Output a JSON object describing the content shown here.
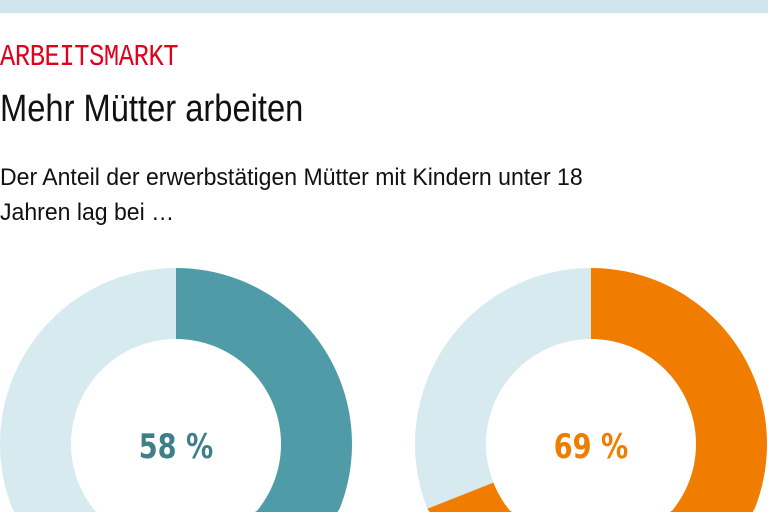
{
  "header": {
    "kicker": "ARBEITSMARKT",
    "title": "Mehr Mütter arbeiten",
    "subtitle_line1": "Der Anteil der erwerbstätigen Mütter mit Kindern unter 18",
    "subtitle_line2": "Jahren lag bei …"
  },
  "colors": {
    "top_bar": "#cfe6ee",
    "kicker": "#e2001a",
    "remainder": "#d6eaf0"
  },
  "chart_data": [
    {
      "type": "pie",
      "variant": "donut",
      "value": 58,
      "label": "58 %",
      "max": 100,
      "color": "#4f9ca8",
      "label_color": "#3e7f8a"
    },
    {
      "type": "pie",
      "variant": "donut",
      "value": 69,
      "label": "69 %",
      "max": 100,
      "color": "#f07c00",
      "label_color": "#f07c00"
    }
  ]
}
